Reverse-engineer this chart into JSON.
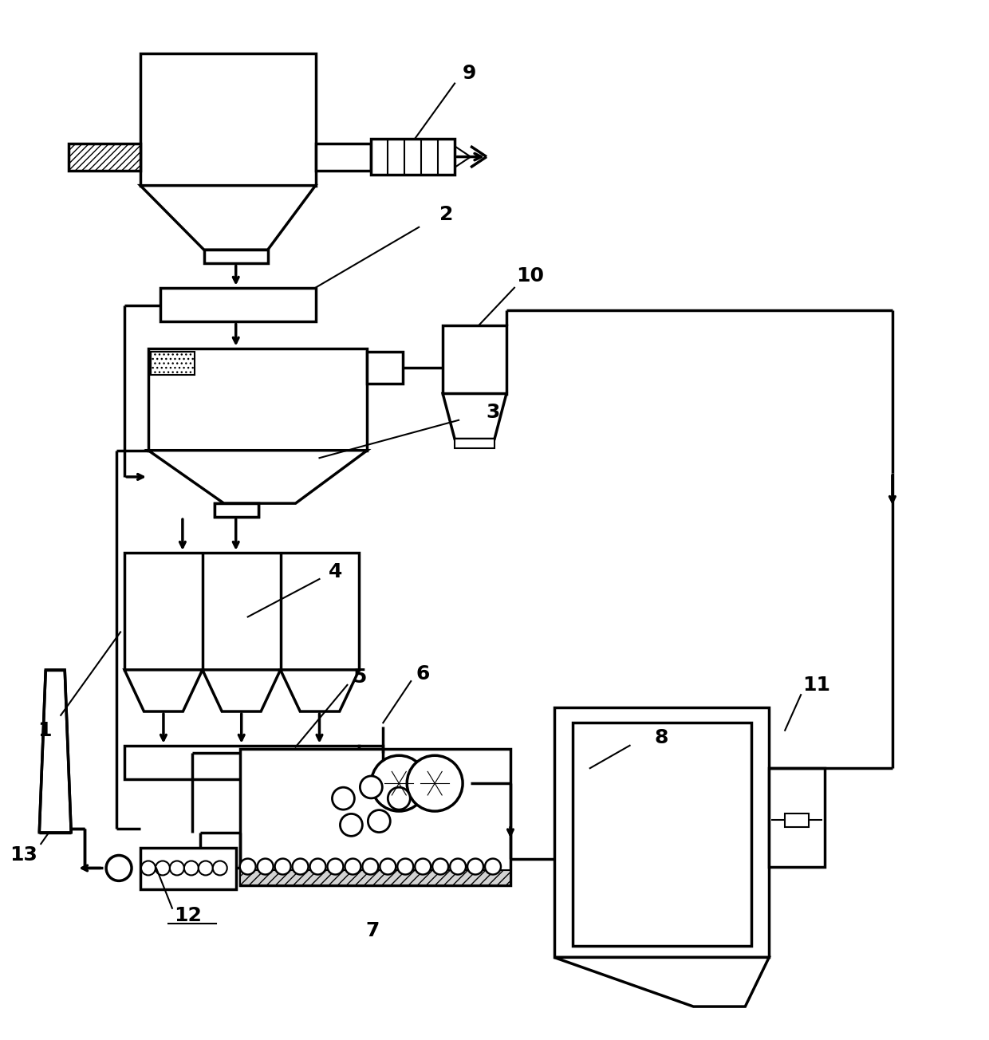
{
  "bg_color": "#ffffff",
  "lw": 2.5,
  "lw_thin": 1.5,
  "lw_thick": 3.5
}
